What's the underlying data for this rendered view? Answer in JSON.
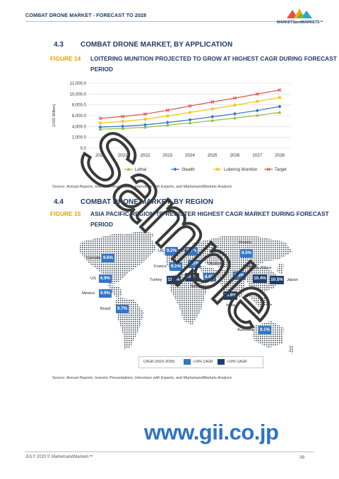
{
  "header": {
    "title": "COMBAT DRONE MARKET - FORECAST TO 2028",
    "logo_text": "MARKETSandMARKETS™"
  },
  "section1": {
    "number": "4.3",
    "title": "COMBAT DRONE MARKET, BY APPLICATION"
  },
  "figure14": {
    "label": "FIGURE 14",
    "caption": "LOITERING MUNITION PROJECTED TO GROW AT HIGHEST CAGR DURING FORECAST PERIOD"
  },
  "chart_data": {
    "type": "line",
    "title": "",
    "ylabel": "(USD Million)",
    "xlabel": "",
    "x": [
      "2020",
      "2021",
      "2022",
      "2023",
      "2024",
      "2025",
      "2026",
      "2027",
      "2028"
    ],
    "ylim": [
      0,
      12000
    ],
    "y_ticks": [
      "12,000.0",
      "10,000.0",
      "8,000.0",
      "6,000.0",
      "4,000.0",
      "2,000.0",
      "0.0"
    ],
    "y_tick_values": [
      12000,
      10000,
      8000,
      6000,
      4000,
      2000,
      0
    ],
    "grid": true,
    "legend_position": "bottom",
    "series": [
      {
        "name": "Lethal",
        "color": "#8fbf3c",
        "marker": "triangle",
        "values": [
          3500,
          3650,
          3850,
          4250,
          4650,
          5100,
          5550,
          6050,
          6600
        ]
      },
      {
        "name": "Stealth",
        "color": "#2f6ec4",
        "marker": "diamond",
        "values": [
          3900,
          4050,
          4300,
          4750,
          5250,
          5800,
          6350,
          6950,
          7700
        ]
      },
      {
        "name": "Loitering Munition",
        "color": "#f2c40f",
        "marker": "star",
        "values": [
          4650,
          4950,
          5350,
          5950,
          6600,
          7250,
          7950,
          8650,
          9350
        ]
      },
      {
        "name": "Target",
        "color": "#d9504a",
        "marker": "x",
        "values": [
          5500,
          5850,
          6300,
          7000,
          7800,
          8550,
          9250,
          10000,
          10750
        ]
      }
    ]
  },
  "source1": {
    "prefix": "Source: ",
    "text": "Annual Reports, Investor Presentations, Interviews with Experts, and MarketsandMarkets Analysis"
  },
  "section2": {
    "number": "4.4",
    "title": "COMBAT DRONE MARKET, BY REGION"
  },
  "figure15": {
    "label": "FIGURE 15",
    "caption": "ASIA PACIFIC REGION TO REGISTER HIGHEST CAGR MARKET DURING FORECAST PERIOD"
  },
  "map": {
    "colors": {
      "low": "#3477c5",
      "high": "#1c3f6e"
    },
    "markers": [
      {
        "country": "Canada",
        "value": "9.6%",
        "level": "low"
      },
      {
        "country": "US",
        "value": "6.9%",
        "level": "low"
      },
      {
        "country": "Mexico",
        "value": "9.9%",
        "level": "low"
      },
      {
        "country": "Brazil",
        "value": "9.7%",
        "level": "low"
      },
      {
        "country": "UK",
        "value": "9.2%",
        "level": "low"
      },
      {
        "country": "Germany",
        "value": "9.6%",
        "level": "low"
      },
      {
        "country": "France",
        "value": "9.2%",
        "level": "low"
      },
      {
        "country": "Ukraine",
        "value": "9.2%",
        "level": "low"
      },
      {
        "country": "Turkey",
        "value": "11.0%",
        "level": "high"
      },
      {
        "country": "Italy",
        "value": "10.2%",
        "level": "high"
      },
      {
        "country": "Israel",
        "value": "8.6%",
        "level": "low"
      },
      {
        "country": "Russia",
        "value": "8.5%",
        "level": "low"
      },
      {
        "country": "China",
        "value": "9.9%",
        "level": "low"
      },
      {
        "country": "South Korea",
        "value": "10.4%",
        "level": "high"
      },
      {
        "country": "Japan",
        "value": "10.5%",
        "level": "high"
      },
      {
        "country": "India",
        "value": "10.6%",
        "level": "high"
      },
      {
        "country": "Australia",
        "value": "9.1%",
        "level": "low"
      }
    ],
    "legend": {
      "title": "CAGR (2023–2030)",
      "low_label": "<10% CAGR",
      "high_label": ">10% CAGR"
    }
  },
  "source2": {
    "prefix": "Source: ",
    "text": "Annual Reports, Investor Presentations, Interviews with Experts, and MarketsandMarkets Analysis"
  },
  "watermark": {
    "text": "Sample"
  },
  "url_text": "www.gii.co.jp",
  "footer": {
    "left": "JULY 2023 © MarketsandMarkets™",
    "page": "38"
  }
}
